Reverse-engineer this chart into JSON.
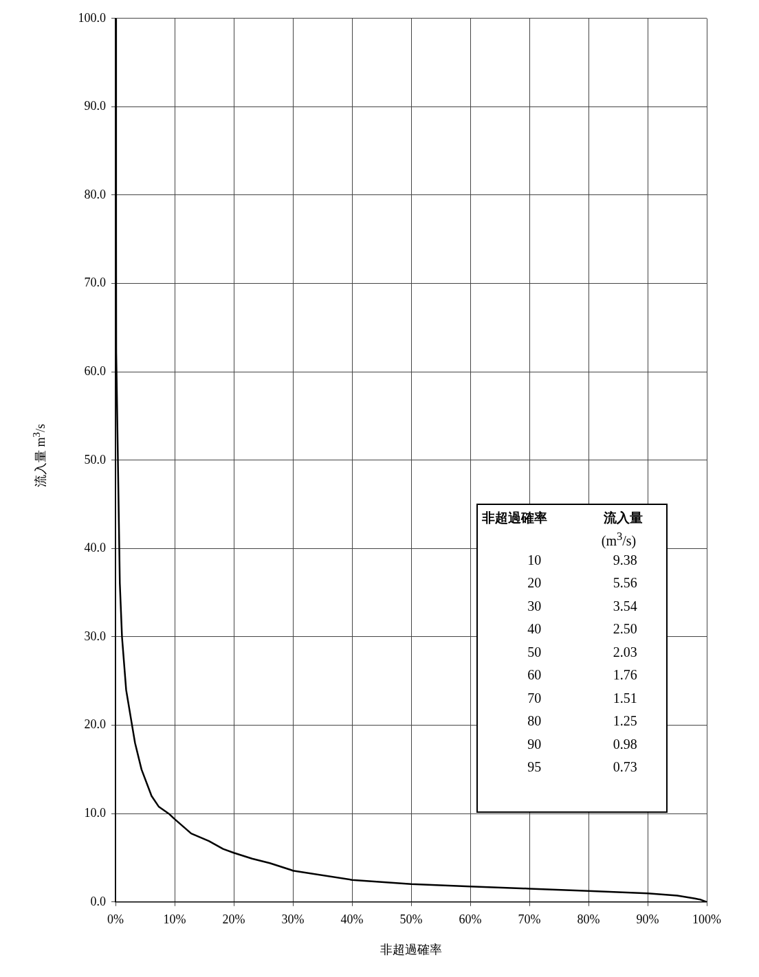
{
  "chart_data": {
    "type": "line",
    "xlabel": "非超過確率",
    "ylabel": "流入量 m$^{3}$/s",
    "x": [
      0,
      0.1,
      0.12,
      0.5,
      0.73,
      1.1,
      1.8,
      2.8,
      3.3,
      4.4,
      6.1,
      7.3,
      9.0,
      10,
      12.8,
      15.8,
      18.2,
      20,
      23.1,
      26.1,
      29.8,
      30,
      40,
      50,
      60,
      70,
      80,
      90,
      95,
      98,
      99,
      100
    ],
    "series": [
      {
        "color": "#000000",
        "values": [
          100,
          75,
          62.2,
          46.1,
          36.1,
          30.0,
          24.0,
          20.0,
          18.0,
          15.0,
          12.0,
          10.8,
          10.0,
          9.38,
          7.75,
          6.9,
          6.0,
          5.56,
          4.9,
          4.4,
          3.6,
          3.54,
          2.5,
          2.03,
          1.76,
          1.51,
          1.25,
          0.98,
          0.73,
          0.4,
          0.25,
          0
        ]
      }
    ],
    "xlim": [
      0,
      100
    ],
    "xticks": [
      {
        "value": 0,
        "label": "0%"
      },
      {
        "value": 10,
        "label": "10%"
      },
      {
        "value": 20,
        "label": "20%"
      },
      {
        "value": 30,
        "label": "30%"
      },
      {
        "value": 40,
        "label": "40%"
      },
      {
        "value": 50,
        "label": "50%"
      },
      {
        "value": 60,
        "label": "60%"
      },
      {
        "value": 70,
        "label": "70%"
      },
      {
        "value": 80,
        "label": "80%"
      },
      {
        "value": 90,
        "label": "90%"
      },
      {
        "value": 100,
        "label": "100%"
      }
    ],
    "ylim": [
      0,
      100
    ],
    "yticks": [
      {
        "value": 0,
        "label": "0.0"
      },
      {
        "value": 10,
        "label": "10.0"
      },
      {
        "value": 20,
        "label": "20.0"
      },
      {
        "value": 30,
        "label": "30.0"
      },
      {
        "value": 40,
        "label": "40.0"
      },
      {
        "value": 50,
        "label": "50.0"
      },
      {
        "value": 60,
        "label": "60.0"
      },
      {
        "value": 70,
        "label": "70.0"
      },
      {
        "value": 80,
        "label": "80.0"
      },
      {
        "value": 90,
        "label": "90.0"
      },
      {
        "value": 100,
        "label": "100.0"
      }
    ],
    "grid": true,
    "legend": false,
    "marker": "none",
    "line_style": "solid",
    "annotations": [
      "非超過確率",
      "流入量",
      "(m$^{3}$/s)",
      "10",
      "9.38",
      "20",
      "5.56",
      "30",
      "3.54",
      "40",
      "2.50",
      "50",
      "2.03",
      "60",
      "1.76",
      "70",
      "1.51",
      "80",
      "1.25",
      "90",
      "0.98",
      "95",
      "0.73"
    ]
  }
}
